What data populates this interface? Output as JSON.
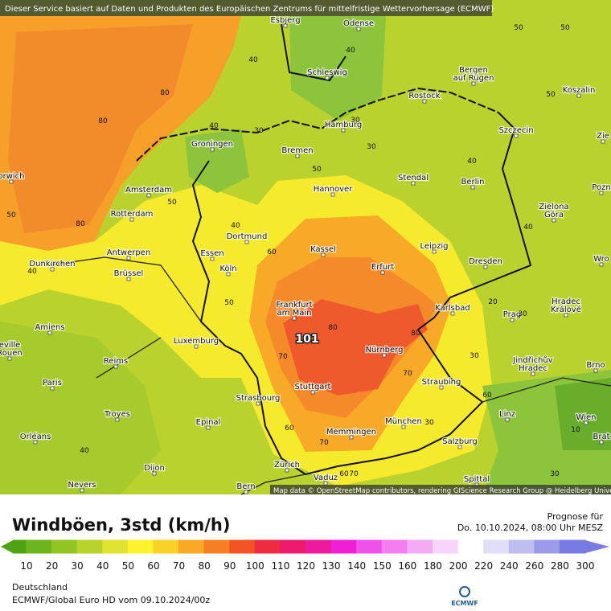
{
  "map": {
    "notice": "Dieser Service basiert auf Daten und Produkten des Europäischen Zentrums für mittelfristige Wettervorhersage (ECMWF)",
    "attribution": "Map data © OpenStreetMap contributors, rendering GIScience Research Group @ Heidelberg University",
    "cities": [
      {
        "lines": [
          "Esbjerg"
        ]
      },
      {
        "lines": [
          "Odense"
        ]
      },
      {
        "lines": [
          "Schleswig"
        ]
      },
      {
        "lines": [
          "Bergen",
          "auf Rügen"
        ]
      },
      {
        "lines": [
          "Rostock"
        ]
      },
      {
        "lines": [
          "Koszalin"
        ]
      },
      {
        "lines": [
          "Hamburg"
        ]
      },
      {
        "lines": [
          "Szczecin"
        ]
      },
      {
        "lines": [
          "Groningen"
        ]
      },
      {
        "lines": [
          "Bremen"
        ]
      },
      {
        "lines": [
          "orwich"
        ]
      },
      {
        "lines": [
          "Stendal"
        ]
      },
      {
        "lines": [
          "Berlin"
        ]
      },
      {
        "lines": [
          "Amsterdam"
        ]
      },
      {
        "lines": [
          "Hannover"
        ]
      },
      {
        "lines": [
          "Pozn"
        ]
      },
      {
        "lines": [
          "Rotterdam"
        ]
      },
      {
        "lines": [
          "Zielona",
          "Góra"
        ]
      },
      {
        "lines": [
          "Dortmund"
        ]
      },
      {
        "lines": [
          "Essen"
        ]
      },
      {
        "lines": [
          "Leipzig"
        ]
      },
      {
        "lines": [
          "Kassel"
        ]
      },
      {
        "lines": [
          "Antwerpen"
        ]
      },
      {
        "lines": [
          "Dunkirchen"
        ]
      },
      {
        "lines": [
          "Köln"
        ]
      },
      {
        "lines": [
          "Erfurt"
        ]
      },
      {
        "lines": [
          "Dresden"
        ]
      },
      {
        "lines": [
          "Wro"
        ]
      },
      {
        "lines": [
          "Brüssel"
        ]
      },
      {
        "lines": [
          "Frankfurt",
          "am Main"
        ]
      },
      {
        "lines": [
          "Karlsbad"
        ]
      },
      {
        "lines": [
          "Hradec",
          "Králové"
        ]
      },
      {
        "lines": [
          "Prag"
        ]
      },
      {
        "lines": [
          "Amiens"
        ]
      },
      {
        "lines": [
          "Luxemburg"
        ]
      },
      {
        "lines": [
          "eville",
          "Rouen"
        ]
      },
      {
        "lines": [
          "Nürnberg"
        ]
      },
      {
        "lines": [
          "Jindřichův",
          "Hradec"
        ]
      },
      {
        "lines": [
          "Brno"
        ]
      },
      {
        "lines": [
          "Reims"
        ]
      },
      {
        "lines": [
          "Paris"
        ]
      },
      {
        "lines": [
          "Stuttgart"
        ]
      },
      {
        "lines": [
          "Straubing"
        ]
      },
      {
        "lines": [
          "Strasbourg"
        ]
      },
      {
        "lines": [
          "Troyes"
        ]
      },
      {
        "lines": [
          "Epinal"
        ]
      },
      {
        "lines": [
          "München"
        ]
      },
      {
        "lines": [
          "Linz"
        ]
      },
      {
        "lines": [
          "Wien"
        ]
      },
      {
        "lines": [
          "Orléans"
        ]
      },
      {
        "lines": [
          "Memmingen"
        ]
      },
      {
        "lines": [
          "Salzburg"
        ]
      },
      {
        "lines": [
          "Zürich"
        ]
      },
      {
        "lines": [
          "Vaduz"
        ]
      },
      {
        "lines": [
          "Dijon"
        ]
      },
      {
        "lines": [
          "Nevers"
        ]
      },
      {
        "lines": [
          "Bern"
        ]
      },
      {
        "lines": [
          "Spittal"
        ]
      },
      {
        "lines": [
          "Brat"
        ]
      },
      {
        "lines": [
          "Zie"
        ]
      }
    ],
    "contour_labels": [
      "40",
      "50",
      "50",
      "80",
      "80",
      "40",
      "30",
      "101",
      "50",
      "50",
      "80",
      "40",
      "60",
      "50",
      "70",
      "80",
      "80",
      "70",
      "60",
      "60",
      "70",
      "30",
      "20",
      "30",
      "40",
      "10",
      "30",
      "30",
      "40",
      "40",
      "50",
      "40",
      "50",
      "30",
      "40",
      "70",
      "60",
      "30"
    ]
  },
  "legend": {
    "title": "Windböen, 3std (km/h)",
    "forecast_label": "Prognose für",
    "forecast_time": "Do. 10.10.2024, 08:00 Uhr MESZ",
    "scale": [
      {
        "value": 10,
        "color": "#4ea315"
      },
      {
        "value": 20,
        "color": "#6db51c"
      },
      {
        "value": 30,
        "color": "#93c522"
      },
      {
        "value": 40,
        "color": "#b8d42a"
      },
      {
        "value": 50,
        "color": "#dfe22e"
      },
      {
        "value": 60,
        "color": "#fdf22c"
      },
      {
        "value": 70,
        "color": "#fbd027"
      },
      {
        "value": 80,
        "color": "#f9a925"
      },
      {
        "value": 90,
        "color": "#f67e23"
      },
      {
        "value": 100,
        "color": "#f35221"
      },
      {
        "value": 110,
        "color": "#f02a40"
      },
      {
        "value": 120,
        "color": "#ee1b6c"
      },
      {
        "value": 130,
        "color": "#ed1a9e"
      },
      {
        "value": 140,
        "color": "#ee20d4"
      },
      {
        "value": 150,
        "color": "#ef52e8"
      },
      {
        "value": 160,
        "color": "#f27ef0"
      },
      {
        "value": 180,
        "color": "#f5aaf5"
      },
      {
        "value": 200,
        "color": "#f9d4fa"
      },
      {
        "value": 220,
        "color": "#ffffff"
      },
      {
        "value": 240,
        "color": "#dedef7"
      },
      {
        "value": 260,
        "color": "#bdbdf0"
      },
      {
        "value": 280,
        "color": "#9b9bea"
      },
      {
        "value": 300,
        "color": "#7a7ae4"
      }
    ]
  },
  "footer": {
    "region": "Deutschland",
    "model": "ECMWF/Global Euro HD vom  09.10.2024/00z",
    "logo": "ECMWF"
  }
}
